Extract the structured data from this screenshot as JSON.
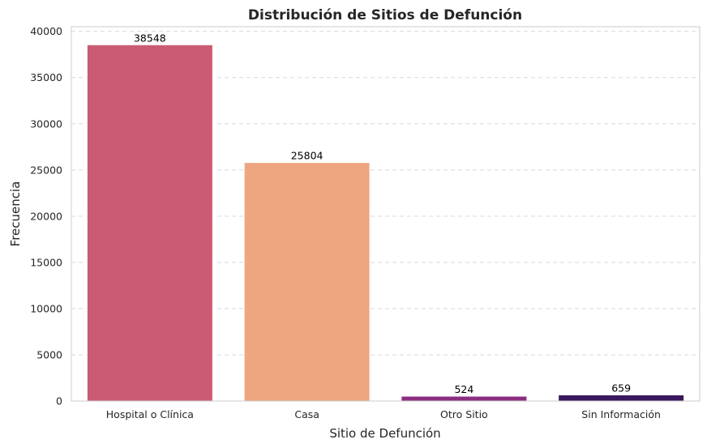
{
  "chart_data": {
    "type": "bar",
    "title": "Distribución de Sitios de Defunción",
    "xlabel": "Sitio de Defunción",
    "ylabel": "Frecuencia",
    "categories": [
      "Hospital o Clínica",
      "Casa",
      "Otro Sitio",
      "Sin Información"
    ],
    "values": [
      38548,
      25804,
      524,
      659
    ],
    "data_labels": [
      "38548",
      "25804",
      "524",
      "659"
    ],
    "colors": [
      "#cb5b74",
      "#eea680",
      "#8c2e80",
      "#3a185e"
    ],
    "ylim": [
      0,
      40500
    ],
    "yticks": [
      0,
      5000,
      10000,
      15000,
      20000,
      25000,
      30000,
      35000,
      40000
    ],
    "ytick_labels": [
      "0",
      "5000",
      "10000",
      "15000",
      "20000",
      "25000",
      "30000",
      "35000",
      "40000"
    ],
    "grid": "horizontal dashed",
    "legend": "none"
  }
}
